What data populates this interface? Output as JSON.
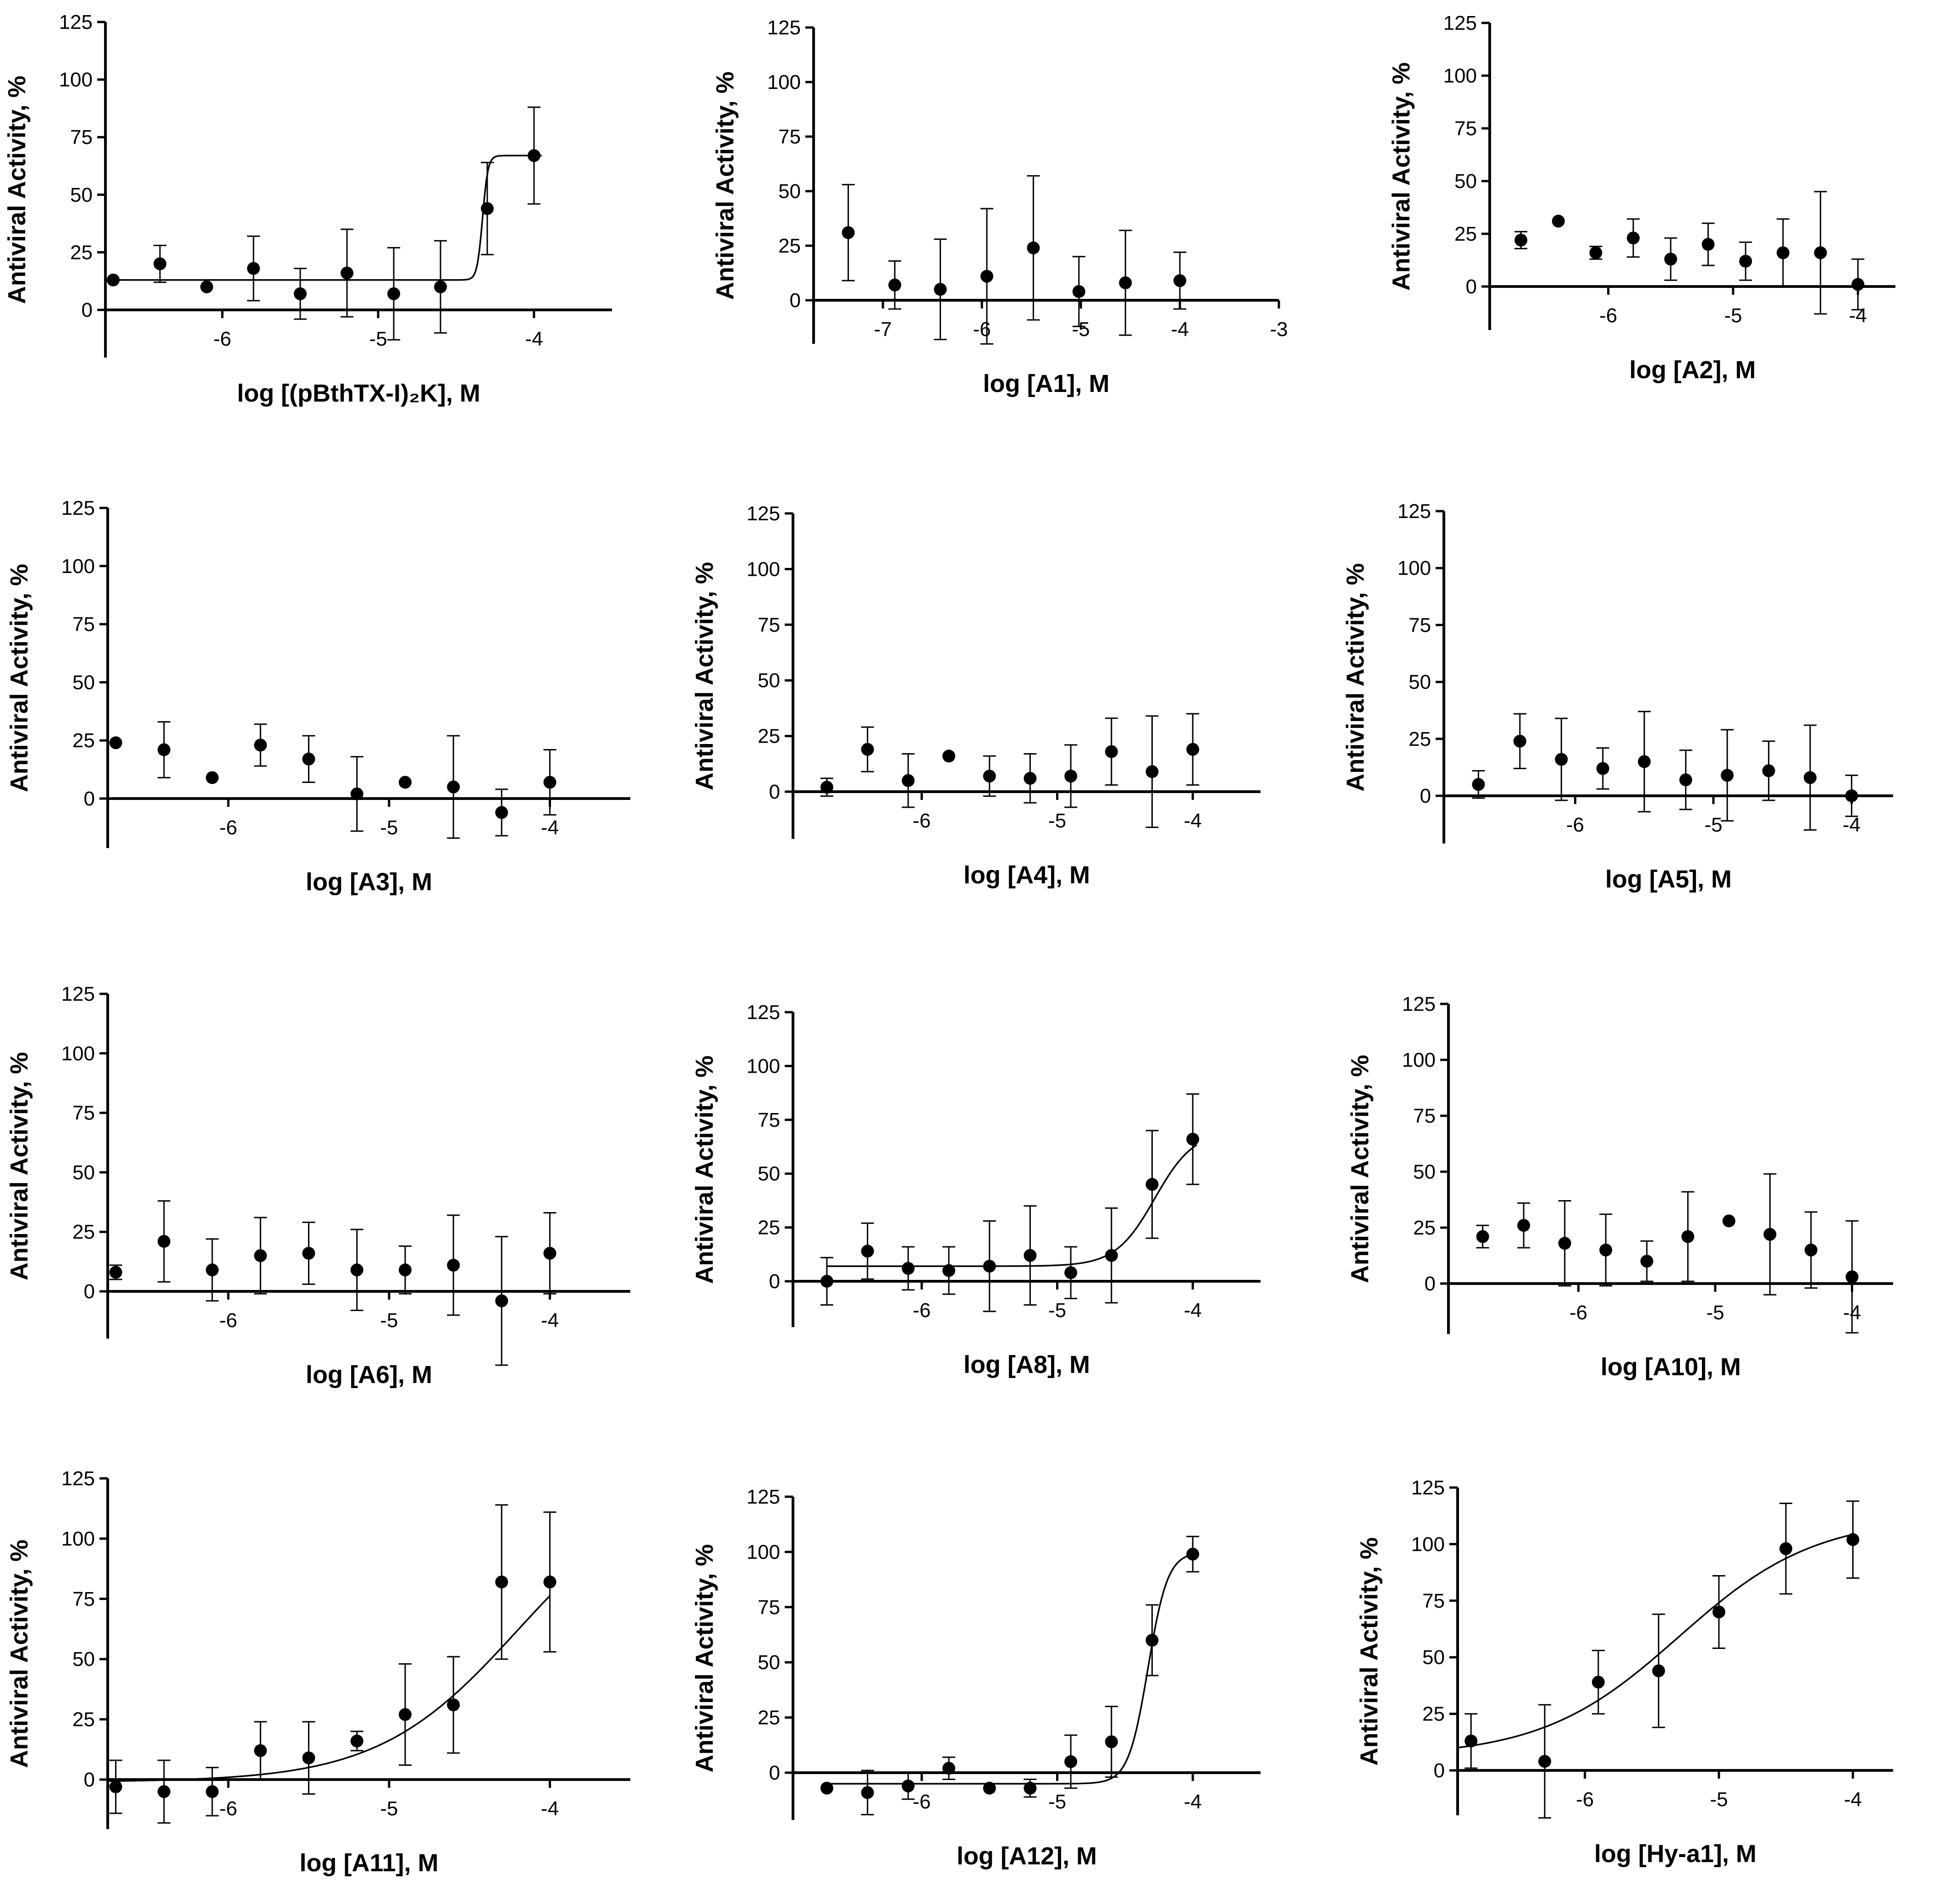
{
  "figure": {
    "title": "",
    "background": "#ffffff",
    "ink": "#000000"
  },
  "chart_data": [
    {
      "id": "pbthtx",
      "type": "scatter",
      "xlabel": "log [(pBthTX-I)₂K], M",
      "ylabel": "Antiviral Activity, %",
      "xlim": [
        -6.75,
        -3.5
      ],
      "ylim": [
        -20,
        125
      ],
      "xticks": [
        -6,
        -5,
        -4
      ],
      "yticks": [
        0,
        25,
        50,
        75,
        100,
        125
      ],
      "xtick_labels": [
        "-6",
        "-5",
        "-4"
      ],
      "ytick_labels": [
        "0",
        "25",
        "50",
        "75",
        "100",
        "125"
      ],
      "points": [
        {
          "x": -6.7,
          "y": 13,
          "err": 0
        },
        {
          "x": -6.4,
          "y": 20,
          "err": 8
        },
        {
          "x": -6.1,
          "y": 10,
          "err": 0
        },
        {
          "x": -5.8,
          "y": 18,
          "err": 14
        },
        {
          "x": -5.5,
          "y": 7,
          "err": 11
        },
        {
          "x": -5.2,
          "y": 16,
          "err": 19
        },
        {
          "x": -4.9,
          "y": 7,
          "err": 20
        },
        {
          "x": -4.6,
          "y": 10,
          "err": 20
        },
        {
          "x": -4.3,
          "y": 44,
          "err": 20
        },
        {
          "x": -4.0,
          "y": 67,
          "err": 21
        }
      ],
      "fit": {
        "bottom": 13,
        "top": 67,
        "logEC50": -4.33,
        "hill": 25,
        "xmin": -6.7,
        "xmax": -3.95
      }
    },
    {
      "id": "A1",
      "type": "scatter",
      "xlabel": "log [A1], M",
      "ylabel": "Antiviral Activity, %",
      "xlim": [
        -7.7,
        -3
      ],
      "ylim": [
        -20,
        125
      ],
      "xticks": [
        -7,
        -6,
        -5,
        -4,
        -3
      ],
      "yticks": [
        0,
        25,
        50,
        75,
        100,
        125
      ],
      "xtick_labels": [
        "-7",
        "-6",
        "-5",
        "-4",
        "-3"
      ],
      "ytick_labels": [
        "0",
        "25",
        "50",
        "75",
        "100",
        "125"
      ],
      "points": [
        {
          "x": -7.35,
          "y": 31,
          "err": 22
        },
        {
          "x": -6.88,
          "y": 7,
          "err": 11
        },
        {
          "x": -6.42,
          "y": 5,
          "err": 23
        },
        {
          "x": -5.95,
          "y": 11,
          "err": 31
        },
        {
          "x": -5.48,
          "y": 24,
          "err": 33
        },
        {
          "x": -5.02,
          "y": 4,
          "err": 16
        },
        {
          "x": -4.55,
          "y": 8,
          "err": 24
        },
        {
          "x": -4.0,
          "y": 9,
          "err": 13
        }
      ]
    },
    {
      "id": "A2",
      "type": "scatter",
      "xlabel": "log [A2], M",
      "ylabel": "Antiviral Activity, %",
      "xlim": [
        -6.95,
        -3.7
      ],
      "ylim": [
        -20,
        125
      ],
      "xticks": [
        -6,
        -5,
        -4
      ],
      "yticks": [
        0,
        25,
        50,
        75,
        100,
        125
      ],
      "xtick_labels": [
        "-6",
        "-5",
        "-4"
      ],
      "ytick_labels": [
        "0",
        "25",
        "50",
        "75",
        "100",
        "125"
      ],
      "points": [
        {
          "x": -6.7,
          "y": 22,
          "err": 4
        },
        {
          "x": -6.4,
          "y": 31,
          "err": 0
        },
        {
          "x": -6.1,
          "y": 16,
          "err": 3
        },
        {
          "x": -5.8,
          "y": 23,
          "err": 9
        },
        {
          "x": -5.5,
          "y": 13,
          "err": 10
        },
        {
          "x": -5.2,
          "y": 20,
          "err": 10
        },
        {
          "x": -4.9,
          "y": 12,
          "err": 9
        },
        {
          "x": -4.6,
          "y": 16,
          "err": 16
        },
        {
          "x": -4.3,
          "y": 16,
          "err": 29
        },
        {
          "x": -4.0,
          "y": 1,
          "err": 12
        }
      ]
    },
    {
      "id": "A3",
      "type": "scatter",
      "xlabel": "log [A3], M",
      "ylabel": "Antiviral Activity, %",
      "xlim": [
        -6.75,
        -3.5
      ],
      "ylim": [
        -20,
        125
      ],
      "xticks": [
        -6,
        -5,
        -4
      ],
      "yticks": [
        0,
        25,
        50,
        75,
        100,
        125
      ],
      "xtick_labels": [
        "-6",
        "-5",
        "-4"
      ],
      "ytick_labels": [
        "0",
        "25",
        "50",
        "75",
        "100",
        "125"
      ],
      "points": [
        {
          "x": -6.7,
          "y": 24,
          "err": 0
        },
        {
          "x": -6.4,
          "y": 21,
          "err": 12
        },
        {
          "x": -6.1,
          "y": 9,
          "err": 0
        },
        {
          "x": -5.8,
          "y": 23,
          "err": 9
        },
        {
          "x": -5.5,
          "y": 17,
          "err": 10
        },
        {
          "x": -5.2,
          "y": 2,
          "err": 16
        },
        {
          "x": -4.9,
          "y": 7,
          "err": 0
        },
        {
          "x": -4.6,
          "y": 5,
          "err": 22
        },
        {
          "x": -4.3,
          "y": -6,
          "err": 10
        },
        {
          "x": -4.0,
          "y": 7,
          "err": 14
        }
      ]
    },
    {
      "id": "A4",
      "type": "scatter",
      "xlabel": "log [A4], M",
      "ylabel": "Antiviral Activity, %",
      "xlim": [
        -6.95,
        -3.5
      ],
      "ylim": [
        -20,
        125
      ],
      "xticks": [
        -6,
        -5,
        -4
      ],
      "yticks": [
        0,
        25,
        50,
        75,
        100,
        125
      ],
      "xtick_labels": [
        "-6",
        "-5",
        "-4"
      ],
      "ytick_labels": [
        "0",
        "25",
        "50",
        "75",
        "100",
        "125"
      ],
      "points": [
        {
          "x": -6.7,
          "y": 2,
          "err": 4
        },
        {
          "x": -6.4,
          "y": 19,
          "err": 10
        },
        {
          "x": -6.1,
          "y": 5,
          "err": 12
        },
        {
          "x": -5.8,
          "y": 16,
          "err": 0
        },
        {
          "x": -5.5,
          "y": 7,
          "err": 9
        },
        {
          "x": -5.2,
          "y": 6,
          "err": 11
        },
        {
          "x": -4.9,
          "y": 7,
          "err": 14
        },
        {
          "x": -4.6,
          "y": 18,
          "err": 15
        },
        {
          "x": -4.3,
          "y": 9,
          "err": 25
        },
        {
          "x": -4.0,
          "y": 19,
          "err": 16
        }
      ]
    },
    {
      "id": "A5",
      "type": "scatter",
      "xlabel": "log [A5], M",
      "ylabel": "Antiviral Activity, %",
      "xlim": [
        -6.95,
        -3.7
      ],
      "ylim": [
        -20,
        125
      ],
      "xticks": [
        -6,
        -5,
        -4
      ],
      "yticks": [
        0,
        25,
        50,
        75,
        100,
        125
      ],
      "xtick_labels": [
        "-6",
        "-5",
        "-4"
      ],
      "ytick_labels": [
        "0",
        "25",
        "50",
        "75",
        "100",
        "125"
      ],
      "points": [
        {
          "x": -6.7,
          "y": 5,
          "err": 6
        },
        {
          "x": -6.4,
          "y": 24,
          "err": 12
        },
        {
          "x": -6.1,
          "y": 16,
          "err": 18
        },
        {
          "x": -5.8,
          "y": 12,
          "err": 9
        },
        {
          "x": -5.5,
          "y": 15,
          "err": 22
        },
        {
          "x": -5.2,
          "y": 7,
          "err": 13
        },
        {
          "x": -4.9,
          "y": 9,
          "err": 20
        },
        {
          "x": -4.6,
          "y": 11,
          "err": 13
        },
        {
          "x": -4.3,
          "y": 8,
          "err": 23
        },
        {
          "x": -4.0,
          "y": 0,
          "err": 9
        }
      ]
    },
    {
      "id": "A6",
      "type": "scatter",
      "xlabel": "log [A6], M",
      "ylabel": "Antiviral Activity, %",
      "xlim": [
        -6.75,
        -3.5
      ],
      "ylim": [
        -20,
        125
      ],
      "xticks": [
        -6,
        -5,
        -4
      ],
      "yticks": [
        0,
        25,
        50,
        75,
        100,
        125
      ],
      "xtick_labels": [
        "-6",
        "-5",
        "-4"
      ],
      "ytick_labels": [
        "0",
        "25",
        "50",
        "75",
        "100",
        "125"
      ],
      "points": [
        {
          "x": -6.7,
          "y": 8,
          "err": 3
        },
        {
          "x": -6.4,
          "y": 21,
          "err": 17
        },
        {
          "x": -6.1,
          "y": 9,
          "err": 13
        },
        {
          "x": -5.8,
          "y": 15,
          "err": 16
        },
        {
          "x": -5.5,
          "y": 16,
          "err": 13
        },
        {
          "x": -5.2,
          "y": 9,
          "err": 17
        },
        {
          "x": -4.9,
          "y": 9,
          "err": 10
        },
        {
          "x": -4.6,
          "y": 11,
          "err": 21
        },
        {
          "x": -4.3,
          "y": -4,
          "err": 27
        },
        {
          "x": -4.0,
          "y": 16,
          "err": 17
        }
      ]
    },
    {
      "id": "A8",
      "type": "scatter",
      "xlabel": "log [A8], M",
      "ylabel": "Antiviral Activity, %",
      "xlim": [
        -6.95,
        -3.5
      ],
      "ylim": [
        -20,
        125
      ],
      "xticks": [
        -6,
        -5,
        -4
      ],
      "yticks": [
        0,
        25,
        50,
        75,
        100,
        125
      ],
      "xtick_labels": [
        "-6",
        "-5",
        "-4"
      ],
      "ytick_labels": [
        "0",
        "25",
        "50",
        "75",
        "100",
        "125"
      ],
      "points": [
        {
          "x": -6.7,
          "y": 0,
          "err": 11
        },
        {
          "x": -6.4,
          "y": 14,
          "err": 13
        },
        {
          "x": -6.1,
          "y": 6,
          "err": 10
        },
        {
          "x": -5.8,
          "y": 5,
          "err": 11
        },
        {
          "x": -5.5,
          "y": 7,
          "err": 21
        },
        {
          "x": -5.2,
          "y": 12,
          "err": 23
        },
        {
          "x": -4.9,
          "y": 4,
          "err": 12
        },
        {
          "x": -4.6,
          "y": 12,
          "err": 22
        },
        {
          "x": -4.3,
          "y": 45,
          "err": 25
        },
        {
          "x": -4.0,
          "y": 66,
          "err": 21
        }
      ],
      "fit": {
        "bottom": 7,
        "top": 70,
        "logEC50": -4.28,
        "hill": 3,
        "xmin": -6.7,
        "xmax": -3.97
      }
    },
    {
      "id": "A10",
      "type": "scatter",
      "xlabel": "log [A10], M",
      "ylabel": "Antiviral Activity, %",
      "xlim": [
        -6.95,
        -3.7
      ],
      "ylim": [
        -20,
        125
      ],
      "xticks": [
        -6,
        -5,
        -4
      ],
      "yticks": [
        0,
        25,
        50,
        75,
        100,
        125
      ],
      "xtick_labels": [
        "-6",
        "-5",
        "-4"
      ],
      "ytick_labels": [
        "0",
        "25",
        "50",
        "75",
        "100",
        "125"
      ],
      "points": [
        {
          "x": -6.7,
          "y": 21,
          "err": 5
        },
        {
          "x": -6.4,
          "y": 26,
          "err": 10
        },
        {
          "x": -6.1,
          "y": 18,
          "err": 19
        },
        {
          "x": -5.8,
          "y": 15,
          "err": 16
        },
        {
          "x": -5.5,
          "y": 10,
          "err": 9
        },
        {
          "x": -5.2,
          "y": 21,
          "err": 20
        },
        {
          "x": -4.9,
          "y": 28,
          "err": 0
        },
        {
          "x": -4.6,
          "y": 22,
          "err": 27
        },
        {
          "x": -4.3,
          "y": 15,
          "err": 17
        },
        {
          "x": -4.0,
          "y": 3,
          "err": 25
        }
      ]
    },
    {
      "id": "A11",
      "type": "scatter",
      "xlabel": "log [A11], M",
      "ylabel": "Antiviral Activity, %",
      "xlim": [
        -6.75,
        -3.5
      ],
      "ylim": [
        -20,
        125
      ],
      "xticks": [
        -6,
        -5,
        -4
      ],
      "yticks": [
        0,
        25,
        50,
        75,
        100,
        125
      ],
      "xtick_labels": [
        "-6",
        "-5",
        "-4"
      ],
      "ytick_labels": [
        "0",
        "25",
        "50",
        "75",
        "100",
        "125"
      ],
      "points": [
        {
          "x": -6.7,
          "y": -3,
          "err": 11
        },
        {
          "x": -6.4,
          "y": -5,
          "err": 13
        },
        {
          "x": -6.1,
          "y": -5,
          "err": 10
        },
        {
          "x": -5.8,
          "y": 12,
          "err": 12
        },
        {
          "x": -5.5,
          "y": 9,
          "err": 15
        },
        {
          "x": -5.2,
          "y": 16,
          "err": 4
        },
        {
          "x": -4.9,
          "y": 27,
          "err": 21
        },
        {
          "x": -4.6,
          "y": 31,
          "err": 20
        },
        {
          "x": -4.3,
          "y": 82,
          "err": 32
        },
        {
          "x": -4.0,
          "y": 82,
          "err": 29
        }
      ],
      "fit": {
        "bottom": -1,
        "top": 125,
        "logEC50": -4.2,
        "hill": 1,
        "xmin": -6.75,
        "xmax": -4.0
      }
    },
    {
      "id": "A12",
      "type": "scatter",
      "xlabel": "log [A12], M",
      "ylabel": "Antiviral Activity, %",
      "xlim": [
        -6.95,
        -3.5
      ],
      "ylim": [
        -20,
        125
      ],
      "xticks": [
        -6,
        -5,
        -4
      ],
      "yticks": [
        0,
        25,
        50,
        75,
        100,
        125
      ],
      "xtick_labels": [
        "-6",
        "-5",
        "-4"
      ],
      "ytick_labels": [
        "0",
        "25",
        "50",
        "75",
        "100",
        "125"
      ],
      "points": [
        {
          "x": -6.7,
          "y": -7,
          "err": 0
        },
        {
          "x": -6.4,
          "y": -9,
          "err": 10
        },
        {
          "x": -6.1,
          "y": -6,
          "err": 6
        },
        {
          "x": -5.8,
          "y": 2,
          "err": 5
        },
        {
          "x": -5.5,
          "y": -7,
          "err": 0
        },
        {
          "x": -5.2,
          "y": -7,
          "err": 4
        },
        {
          "x": -4.9,
          "y": 5,
          "err": 12
        },
        {
          "x": -4.6,
          "y": 14,
          "err": 16
        },
        {
          "x": -4.3,
          "y": 60,
          "err": 16
        },
        {
          "x": -4.0,
          "y": 99,
          "err": 8
        }
      ],
      "fit": {
        "bottom": -5,
        "top": 100,
        "logEC50": -4.33,
        "hill": 6,
        "xmin": -6.7,
        "xmax": -3.97
      }
    },
    {
      "id": "Hy-a1",
      "type": "scatter",
      "xlabel": "log [Hy-a1], M",
      "ylabel": "Antiviral Activity, %",
      "xlim": [
        -6.95,
        -3.7
      ],
      "ylim": [
        -20,
        125
      ],
      "xticks": [
        -6,
        -5,
        -4
      ],
      "yticks": [
        0,
        25,
        50,
        75,
        100,
        125
      ],
      "xtick_labels": [
        "-6",
        "-5",
        "-4"
      ],
      "ytick_labels": [
        "0",
        "25",
        "50",
        "75",
        "100",
        "125"
      ],
      "points": [
        {
          "x": -6.85,
          "y": 13,
          "err": 12
        },
        {
          "x": -6.3,
          "y": 4,
          "err": 25
        },
        {
          "x": -5.9,
          "y": 39,
          "err": 14
        },
        {
          "x": -5.45,
          "y": 44,
          "err": 25
        },
        {
          "x": -5.0,
          "y": 70,
          "err": 16
        },
        {
          "x": -4.5,
          "y": 98,
          "err": 20
        },
        {
          "x": -4.0,
          "y": 102,
          "err": 17
        }
      ],
      "fit": {
        "bottom": 6,
        "top": 112,
        "logEC50": -5.3,
        "hill": 0.85,
        "xmin": -6.95,
        "xmax": -4.0
      }
    }
  ]
}
